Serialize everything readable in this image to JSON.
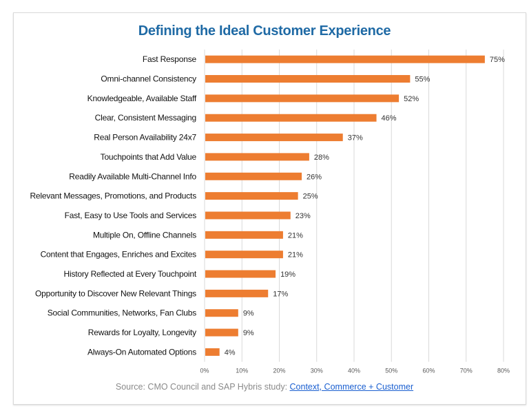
{
  "chart_data": {
    "type": "bar",
    "orientation": "horizontal",
    "title": "Defining the Ideal Customer Experience",
    "categories": [
      "Fast Response",
      "Omni-channel Consistency",
      "Knowledgeable, Available Staff",
      "Clear, Consistent Messaging",
      "Real Person Availability 24x7",
      "Touchpoints that Add Value",
      "Readily Available Multi-Channel Info",
      "Relevant Messages, Promotions, and Products",
      "Fast, Easy to Use Tools and Services",
      "Multiple On, Offline Channels",
      "Content that Engages, Enriches and Excites",
      "History Reflected at Every Touchpoint",
      "Opportunity to Discover New Relevant Things",
      "Social Communities, Networks, Fan Clubs",
      "Rewards for Loyalty, Longevity",
      "Always-On Automated Options"
    ],
    "values": [
      75,
      55,
      52,
      46,
      37,
      28,
      26,
      25,
      23,
      21,
      21,
      19,
      17,
      9,
      9,
      4
    ],
    "data_labels": [
      "75%",
      "55%",
      "52%",
      "46%",
      "37%",
      "28%",
      "26%",
      "25%",
      "23%",
      "21%",
      "21%",
      "19%",
      "17%",
      "9%",
      "9%",
      "4%"
    ],
    "xticks": [
      "0%",
      "10%",
      "20%",
      "30%",
      "40%",
      "50%",
      "60%",
      "70%",
      "80%"
    ],
    "xlim": [
      0,
      80
    ],
    "grid": "vertical",
    "bar_color": "#ed7d31",
    "title_color": "#1f6aa5"
  },
  "source": {
    "prefix": "Source: CMO Council and SAP Hybris study: ",
    "link_text": "Context, Commerce + Customer"
  }
}
